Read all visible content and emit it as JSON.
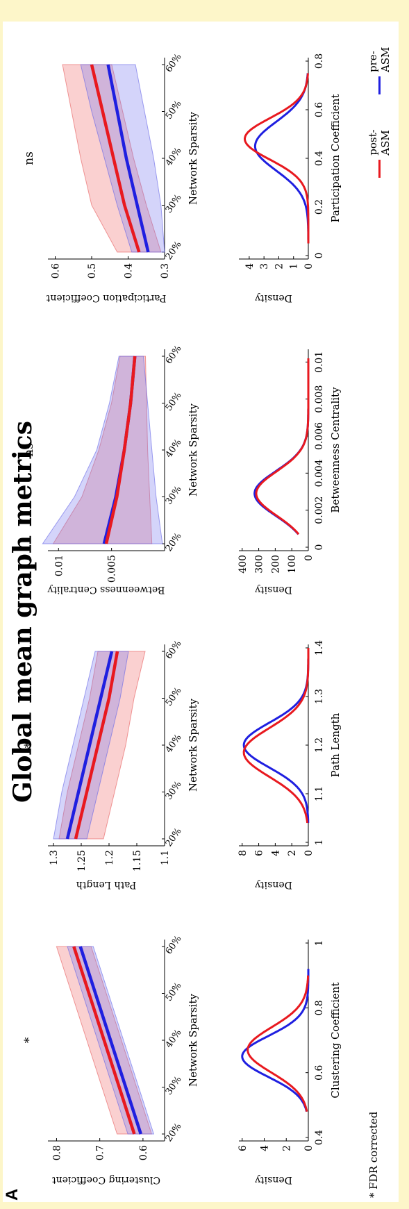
{
  "figure": {
    "panel_label": "A",
    "title": "Global mean graph metrics",
    "footnote": "* FDR corrected",
    "legend": [
      {
        "label": "post-ASM",
        "color": "#e8191f"
      },
      {
        "label": "pre-ASM",
        "color": "#1f1fe0"
      }
    ]
  },
  "chart_data": [
    {
      "type": "line",
      "xlabel": "Network Sparsity",
      "ylabel": "Clustering Coefficient",
      "x": [
        "20%",
        "30%",
        "40%",
        "50%",
        "60%"
      ],
      "ylim": [
        0.55,
        0.82
      ],
      "yticks": [
        "0.6",
        "0.7",
        "0.8"
      ],
      "significance": "*",
      "series": [
        {
          "name": "post-ASM",
          "values": [
            0.62,
            0.655,
            0.69,
            0.725,
            0.76
          ],
          "lower": [
            0.58,
            0.615,
            0.65,
            0.685,
            0.72
          ],
          "upper": [
            0.66,
            0.695,
            0.73,
            0.765,
            0.8
          ]
        },
        {
          "name": "pre-ASM",
          "values": [
            0.605,
            0.64,
            0.675,
            0.71,
            0.745
          ],
          "lower": [
            0.575,
            0.61,
            0.645,
            0.68,
            0.715
          ],
          "upper": [
            0.635,
            0.67,
            0.705,
            0.74,
            0.775
          ]
        }
      ]
    },
    {
      "type": "line",
      "xlabel": "Network Sparsity",
      "ylabel": "Path Length",
      "x": [
        "20%",
        "30%",
        "40%",
        "50%",
        "60%"
      ],
      "ylim": [
        1.1,
        1.31
      ],
      "yticks": [
        "1.1",
        "1.15",
        "1.2",
        "1.25",
        "1.3"
      ],
      "significance": "*",
      "series": [
        {
          "name": "post-ASM",
          "values": [
            1.26,
            1.24,
            1.22,
            1.2,
            1.185
          ],
          "lower": [
            1.21,
            1.19,
            1.17,
            1.155,
            1.135
          ],
          "upper": [
            1.29,
            1.275,
            1.255,
            1.235,
            1.22
          ]
        },
        {
          "name": "pre-ASM",
          "values": [
            1.275,
            1.255,
            1.235,
            1.215,
            1.195
          ],
          "lower": [
            1.24,
            1.22,
            1.2,
            1.18,
            1.165
          ],
          "upper": [
            1.3,
            1.285,
            1.265,
            1.245,
            1.225
          ]
        }
      ]
    },
    {
      "type": "line",
      "xlabel": "Network Sparsity",
      "ylabel": "Betweenness Centrality",
      "x": [
        "20%",
        "30%",
        "40%",
        "50%",
        "60%"
      ],
      "ylim": [
        0.0,
        0.011
      ],
      "yticks": [
        "0.005",
        "0.01"
      ],
      "significance": "ns",
      "series": [
        {
          "name": "post-ASM",
          "values": [
            0.0055,
            0.0045,
            0.0038,
            0.0032,
            0.0028
          ],
          "lower": [
            0.0012,
            0.0014,
            0.0016,
            0.0017,
            0.0018
          ],
          "upper": [
            0.0105,
            0.0078,
            0.0062,
            0.005,
            0.0042
          ]
        },
        {
          "name": "pre-ASM",
          "values": [
            0.0057,
            0.0046,
            0.0038,
            0.0032,
            0.0028
          ],
          "lower": [
            0.0002,
            0.0008,
            0.0012,
            0.0016,
            0.002
          ],
          "upper": [
            0.0115,
            0.0085,
            0.0064,
            0.0052,
            0.0043
          ]
        }
      ]
    },
    {
      "type": "line",
      "xlabel": "Network Sparsity",
      "ylabel": "Participation Coefficient",
      "x": [
        "20%",
        "30%",
        "40%",
        "50%",
        "60%"
      ],
      "ylim": [
        0.3,
        0.62
      ],
      "yticks": [
        "0.3",
        "0.4",
        "0.5",
        "0.6"
      ],
      "significance": "ns",
      "series": [
        {
          "name": "post-ASM",
          "values": [
            0.37,
            0.41,
            0.44,
            0.47,
            0.5
          ],
          "lower": [
            0.31,
            0.35,
            0.385,
            0.415,
            0.445
          ],
          "upper": [
            0.43,
            0.5,
            0.53,
            0.555,
            0.58
          ]
        },
        {
          "name": "pre-ASM",
          "values": [
            0.345,
            0.375,
            0.405,
            0.43,
            0.455
          ],
          "lower": [
            0.3,
            0.31,
            0.33,
            0.355,
            0.38
          ],
          "upper": [
            0.39,
            0.43,
            0.465,
            0.5,
            0.53
          ]
        }
      ]
    },
    {
      "type": "area",
      "xlabel": "Clustering Coefficient",
      "ylabel": "Density",
      "xlim": [
        0.4,
        1.0
      ],
      "ylim": [
        0,
        6.3
      ],
      "xticks": [
        "0.4",
        "0.6",
        "0.8",
        "1"
      ],
      "yticks": [
        "0",
        "2",
        "4",
        "6"
      ],
      "series": [
        {
          "name": "post-ASM",
          "mean": 0.67,
          "sd": 0.07,
          "peak": 5.5,
          "xrange": [
            0.48,
            0.9
          ]
        },
        {
          "name": "pre-ASM",
          "mean": 0.65,
          "sd": 0.063,
          "peak": 6.0,
          "xrange": [
            0.48,
            0.92
          ]
        }
      ]
    },
    {
      "type": "area",
      "xlabel": "Path Length",
      "ylabel": "Density",
      "xlim": [
        1.0,
        1.4
      ],
      "ylim": [
        0,
        8.4
      ],
      "xticks": [
        "1",
        "1.1",
        "1.2",
        "1.3",
        "1.4"
      ],
      "yticks": [
        "0",
        "2",
        "4",
        "6",
        "8"
      ],
      "series": [
        {
          "name": "post-ASM",
          "mean": 1.185,
          "sd": 0.05,
          "peak": 7.8,
          "xrange": [
            1.04,
            1.4
          ]
        },
        {
          "name": "pre-ASM",
          "mean": 1.2,
          "sd": 0.046,
          "peak": 7.8,
          "xrange": [
            1.04,
            1.4
          ]
        }
      ]
    },
    {
      "type": "area",
      "xlabel": "Betweenness Centrality",
      "ylabel": "Density",
      "xlim": [
        0.0,
        0.0105
      ],
      "ylim": [
        0,
        420
      ],
      "xticks": [
        "0",
        "0.002",
        "0.004",
        "0.006",
        "0.008",
        "0.01"
      ],
      "yticks": [
        "0",
        "100",
        "200",
        "300",
        "400"
      ],
      "series": [
        {
          "name": "post-ASM",
          "mean": 0.0029,
          "sd": 0.0012,
          "peak": 315,
          "xrange": [
            0.0007,
            0.0102
          ]
        },
        {
          "name": "pre-ASM",
          "mean": 0.0029,
          "sd": 0.0012,
          "peak": 325,
          "xrange": [
            0.0007,
            0.0102
          ]
        }
      ]
    },
    {
      "type": "area",
      "xlabel": "Participation Coefficient",
      "ylabel": "Density",
      "xlim": [
        0.0,
        0.8
      ],
      "ylim": [
        0,
        4.7
      ],
      "xticks": [
        "0",
        "0.2",
        "0.4",
        "0.6",
        "0.8"
      ],
      "yticks": [
        "0",
        "1",
        "2",
        "3",
        "4"
      ],
      "series": [
        {
          "name": "post-ASM",
          "mean": 0.48,
          "sd": 0.085,
          "peak": 4.3,
          "xrange": [
            0.05,
            0.75
          ]
        },
        {
          "name": "pre-ASM",
          "mean": 0.45,
          "sd": 0.1,
          "peak": 3.6,
          "xrange": [
            0.05,
            0.75
          ]
        }
      ]
    }
  ]
}
